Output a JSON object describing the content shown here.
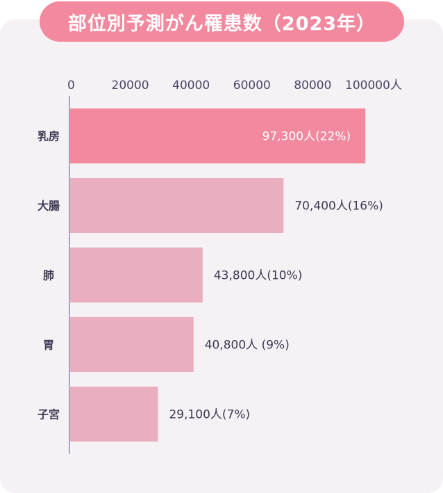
{
  "title": "部位別予測がん罹患数（2023年）",
  "colors": {
    "highlight": "#f3899e",
    "bar": "#e9afbe",
    "axis": "#a9a6c2",
    "text": "#3e3a52",
    "panel": "#f6f1f5"
  },
  "chart_data": {
    "type": "bar",
    "orientation": "horizontal",
    "title": "部位別予測がん罹患数（2023年）",
    "unit": "人",
    "xlim": [
      0,
      100000
    ],
    "xticks": [
      "0",
      "20000",
      "40000",
      "60000",
      "80000",
      "100000人"
    ],
    "categories": [
      "乳房",
      "大腸",
      "肺",
      "胃",
      "子宮"
    ],
    "values": [
      97300,
      70400,
      43800,
      40800,
      29100
    ],
    "labels": [
      "97,300人(22%)",
      "70,400人(16%)",
      "43,800人(10%)",
      "40,800人 (9%)",
      "29,100人(7%)"
    ],
    "highlight_index": 0,
    "grid": false
  }
}
